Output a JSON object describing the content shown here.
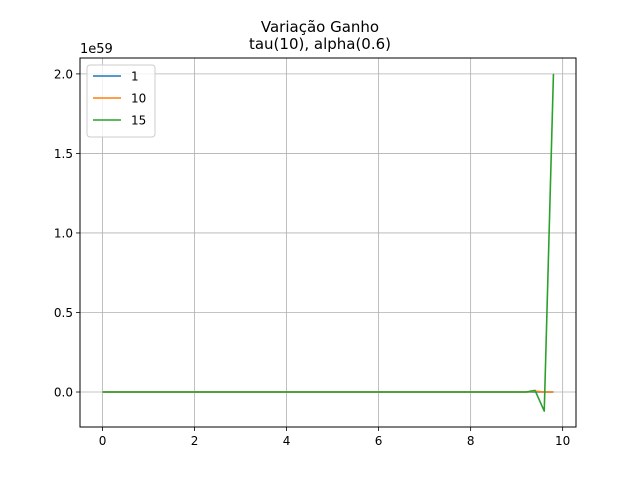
{
  "chart_data": {
    "type": "line",
    "title": "Variação Ganho",
    "subtitle": "tau(10), alpha(0.6)",
    "exponent_label": "1e59",
    "xlim": [
      -0.49,
      10.29
    ],
    "ylim": [
      -0.22,
      2.1
    ],
    "xticks": [
      0,
      2,
      4,
      6,
      8,
      10
    ],
    "xtick_labels": [
      "0",
      "2",
      "4",
      "6",
      "8",
      "10"
    ],
    "yticks": [
      0.0,
      0.5,
      1.0,
      1.5,
      2.0
    ],
    "ytick_labels": [
      "0.0",
      "0.5",
      "1.0",
      "1.5",
      "2.0"
    ],
    "grid": true,
    "legend_position": "top-left",
    "series": [
      {
        "name": "1",
        "color": "#1f77b4",
        "x": [
          0,
          1,
          2,
          3,
          4,
          5,
          6,
          7,
          8,
          9,
          9.8
        ],
        "y": [
          0,
          0,
          0,
          0,
          0,
          0,
          0,
          0,
          0,
          0,
          0
        ]
      },
      {
        "name": "10",
        "color": "#ff7f0e",
        "x": [
          0,
          1,
          2,
          3,
          4,
          5,
          6,
          7,
          8,
          9,
          9.2,
          9.4,
          9.6,
          9.8
        ],
        "y": [
          0,
          0,
          0,
          0,
          0,
          0,
          0,
          0,
          0,
          0,
          0,
          0.005,
          0,
          0
        ]
      },
      {
        "name": "15",
        "color": "#2ca02c",
        "x": [
          0,
          1,
          2,
          3,
          4,
          5,
          6,
          7,
          8,
          9,
          9.2,
          9.4,
          9.6,
          9.8
        ],
        "y": [
          0,
          0,
          0,
          0,
          0,
          0,
          0,
          0,
          0,
          0,
          0,
          0.01,
          -0.12,
          2.0
        ]
      }
    ]
  }
}
